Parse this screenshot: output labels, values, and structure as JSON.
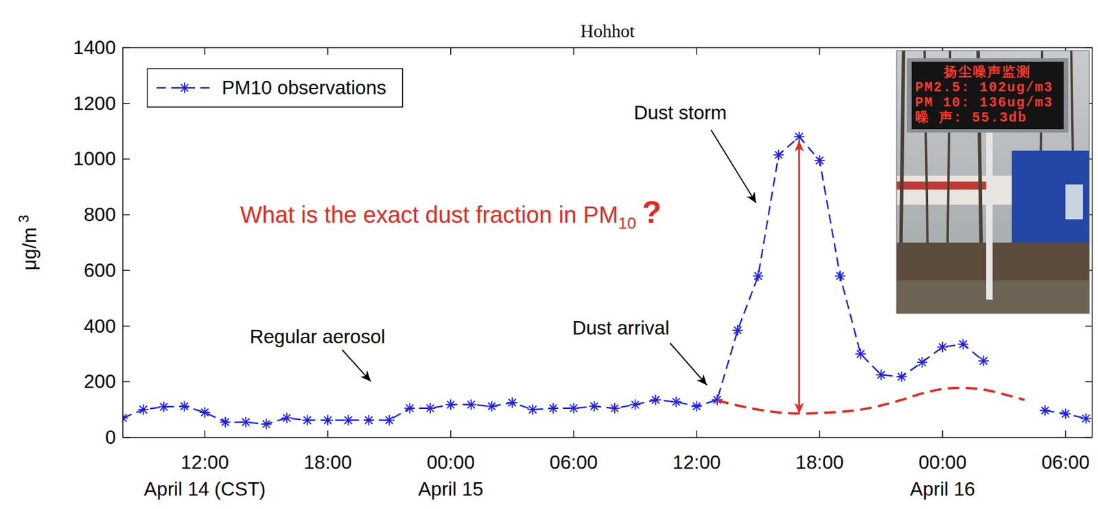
{
  "chart_data": {
    "type": "line",
    "title": "Hohhot",
    "ylabel": {
      "text": "μg/m",
      "superscript": "3"
    },
    "x": [
      8,
      9,
      10,
      11,
      12,
      13,
      14,
      15,
      16,
      17,
      18,
      19,
      20,
      21,
      22,
      23,
      24,
      25,
      26,
      27,
      28,
      29,
      30,
      31,
      32,
      33,
      34,
      35,
      36,
      37,
      38,
      39,
      40,
      41,
      42,
      43,
      44,
      45,
      46,
      47,
      48,
      49,
      50,
      51,
      52,
      53,
      54,
      55
    ],
    "xlim": [
      8,
      55.3
    ],
    "xticks": [
      {
        "value": 12,
        "label": "12:00"
      },
      {
        "value": 18,
        "label": "18:00"
      },
      {
        "value": 24,
        "label": "00:00"
      },
      {
        "value": 30,
        "label": "06:00"
      },
      {
        "value": 36,
        "label": "12:00"
      },
      {
        "value": 42,
        "label": "18:00"
      },
      {
        "value": 48,
        "label": "00:00"
      },
      {
        "value": 54,
        "label": "06:00"
      }
    ],
    "x_date_labels": [
      {
        "value": 12,
        "label": "April 14 (CST)"
      },
      {
        "value": 24,
        "label": "April 15"
      },
      {
        "value": 48,
        "label": "April 16"
      }
    ],
    "ylim": [
      0,
      1400
    ],
    "yticks": [
      0,
      200,
      400,
      600,
      800,
      1000,
      1200,
      1400
    ],
    "grid": false,
    "legend": "upper left",
    "series": [
      {
        "name": "PM10 observations",
        "color": "#1a1aff",
        "marker": "asterisk",
        "line_style": "dashed",
        "values": [
          70,
          100,
          110,
          112,
          90,
          55,
          55,
          48,
          70,
          62,
          62,
          62,
          62,
          62,
          105,
          105,
          118,
          118,
          112,
          125,
          100,
          105,
          105,
          112,
          105,
          118,
          135,
          128,
          112,
          135,
          385,
          580,
          1015,
          1080,
          995,
          580,
          300,
          225,
          218,
          270,
          325,
          335,
          275,
          null,
          null,
          97,
          85,
          68
        ]
      },
      {
        "color": "#e8281e",
        "marker": "none",
        "line_style": "dashed",
        "values": [
          null,
          null,
          null,
          null,
          null,
          null,
          null,
          null,
          null,
          null,
          null,
          null,
          null,
          null,
          null,
          null,
          null,
          null,
          null,
          null,
          null,
          null,
          null,
          null,
          null,
          null,
          null,
          null,
          null,
          133,
          115,
          100,
          90,
          86,
          88,
          92,
          100,
          115,
          135,
          158,
          174,
          178,
          172,
          155,
          135,
          null,
          null,
          null
        ]
      }
    ],
    "annotations": [
      {
        "text": "Dust storm",
        "x": 35.2,
        "y": 1168,
        "arrow_from": [
          36.7,
          1105
        ],
        "arrow_to": [
          38.9,
          842
        ]
      },
      {
        "text": "Regular aerosol",
        "x": 17.5,
        "y": 364,
        "arrow_from": [
          18.7,
          315
        ],
        "arrow_to": [
          20.1,
          201
        ]
      },
      {
        "text": "Dust arrival",
        "x": 32.3,
        "y": 394,
        "arrow_from": [
          34.7,
          339
        ],
        "arrow_to": [
          36.5,
          188
        ]
      }
    ],
    "question": {
      "text": "What is the exact dust fraction in PM",
      "subscript": "10",
      "suffix": "?",
      "x": 24,
      "y": 800,
      "color": "#e8281e"
    },
    "range_arrow": {
      "x": 41,
      "from": 86,
      "to": 1065,
      "color": "#e8281e"
    },
    "inset_sign": {
      "lines": [
        "扬尘噪声监测",
        "PM2.5: 102ug/m3",
        "PM 10: 136ug/m3",
        "噪 声: 55.3db"
      ]
    }
  }
}
